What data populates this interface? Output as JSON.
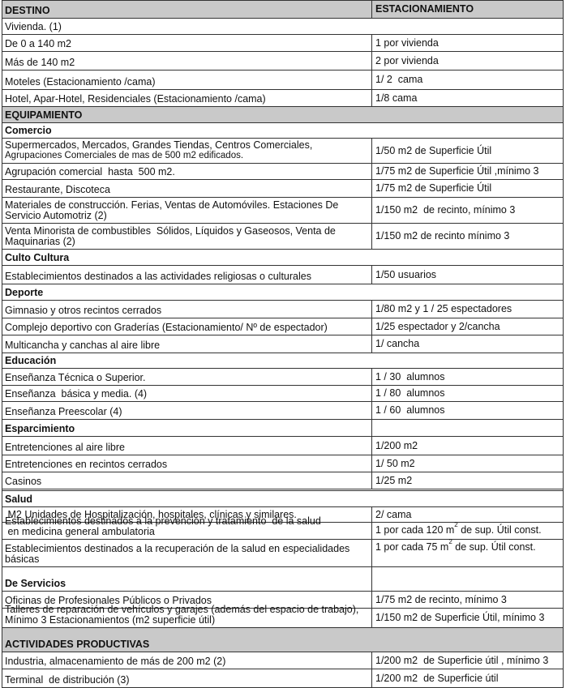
{
  "header": {
    "destino": "DESTINO",
    "estacionamiento": "ESTACIONAMIENTO"
  },
  "rows": [
    {
      "type": "sub-plain",
      "destino": "Vivienda. (1)"
    },
    {
      "type": "item",
      "destino": "De 0 a 140 m2",
      "estacionamiento": "1 por vivienda"
    },
    {
      "type": "item",
      "destino": "Más de 140 m2",
      "estacionamiento": "2 por vivienda"
    },
    {
      "type": "item",
      "destino": "Moteles (Estacionamiento /cama)",
      "estacionamiento": "1/ 2  cama"
    },
    {
      "type": "item",
      "destino": "Hotel, Apar-Hotel, Residenciales (Estacionamiento /cama)",
      "estacionamiento": "1/8 cama"
    },
    {
      "type": "section",
      "destino": "EQUIPAMIENTO"
    },
    {
      "type": "sub",
      "destino": "Comercio"
    },
    {
      "type": "item",
      "destino": "Supermercados, Mercados, Grandes Tiendas, Centros Comerciales,",
      "destino2": "Agrupaciones Comerciales de mas de 500 m2 edificados.",
      "estacionamiento": "1/50 m2 de Superficie Útil"
    },
    {
      "type": "item",
      "destino": "Agrupación comercial  hasta  500 m2.",
      "estacionamiento": "1/75 m2 de Superficie Útil ,mínimo 3"
    },
    {
      "type": "item",
      "destino": "Restaurante, Discoteca",
      "estacionamiento": "1/75 m2 de Superficie Útil"
    },
    {
      "type": "item",
      "destino": "Materiales de construcción. Ferias, Ventas de Automóviles. Estaciones De Servicio Automotriz (2)",
      "estacionamiento": "1/150 m2  de recinto, mínimo 3"
    },
    {
      "type": "item",
      "destino": "Venta Minorista de combustibles  Sólidos, Líquidos y Gaseosos, Venta de Maquinarias (2)",
      "estacionamiento": "1/150 m2 de recinto mínimo 3"
    },
    {
      "type": "sub",
      "destino": "Culto Cultura"
    },
    {
      "type": "item",
      "destino": "Establecimientos destinados a las actividades religiosas o culturales",
      "estacionamiento": "1/50 usuarios"
    },
    {
      "type": "sub",
      "destino": "Deporte"
    },
    {
      "type": "item",
      "destino": "Gimnasio y otros recintos cerrados",
      "estacionamiento": "1/80 m2 y 1 / 25 espectadores"
    },
    {
      "type": "item",
      "destino": "Complejo deportivo con Graderías (Estacionamiento/ Nº de espectador)",
      "estacionamiento": "1/25 espectador y 2/cancha"
    },
    {
      "type": "item",
      "destino": "Multicancha y canchas al aire libre",
      "estacionamiento": "1/ cancha"
    },
    {
      "type": "sub",
      "destino": "Educación"
    },
    {
      "type": "item",
      "destino": "Enseñanza Técnica o Superior.",
      "estacionamiento": "1 / 30  alumnos"
    },
    {
      "type": "item",
      "destino": "Enseñanza  básica y media. (4)",
      "estacionamiento": "1 / 80  alumnos"
    },
    {
      "type": "item",
      "destino": "Enseñanza Preescolar (4)",
      "estacionamiento": "1 / 60  alumnos"
    },
    {
      "type": "sub-split",
      "destino": "Esparcimiento",
      "estacionamiento": ""
    },
    {
      "type": "item",
      "destino": "Entretenciones al aire libre",
      "estacionamiento": "1/200 m2"
    },
    {
      "type": "item",
      "destino": "Entretenciones en recintos cerrados",
      "estacionamiento": "1/ 50 m2"
    },
    {
      "type": "item",
      "destino": "Casinos",
      "estacionamiento": "1/25 m2"
    },
    {
      "type": "sub",
      "destino": "Salud"
    },
    {
      "type": "item",
      "destino": " M2 Unidades de Hospitalización, hospitales, clínicas y similares.",
      "estacionamiento": "2/ cama"
    },
    {
      "type": "item",
      "destino": "Establecimientos destinados a la prevención y tratamiento  de la salud",
      "destino2": " en medicina general ambulatoria",
      "estacionamiento": "1 por cada 120 m",
      "sup": "2",
      "estacionamiento_tail": " de sup. Útil const."
    },
    {
      "type": "item",
      "destino": "Establecimientos destinados a la recuperación de la salud en especialidades básicas",
      "estacionamiento": "1 por cada 75 m",
      "sup": "2",
      "estacionamiento_tail": " de sup. Útil const."
    },
    {
      "type": "sub-split",
      "destino": "De Servicios",
      "estacionamiento": ""
    },
    {
      "type": "item",
      "destino": "Oficinas de Profesionales Públicos o Privados",
      "estacionamiento": "1/75 m2 de recinto, mínimo 3"
    },
    {
      "type": "item",
      "destino": "Talleres de reparación de vehículos y garajes (además del espacio de trabajo), Mínimo 3 Estacionamientos (m2 superficie útil)",
      "estacionamiento": "1/150 m2 de Superficie Útil, mínimo 3"
    },
    {
      "type": "section",
      "destino": "ACTIVIDADES PRODUCTIVAS"
    },
    {
      "type": "item",
      "destino": "Industria, almacenamiento de más de 200 m2 (2)",
      "estacionamiento": "1/200 m2  de Superficie útil , mínimo 3"
    },
    {
      "type": "item",
      "destino": "Terminal  de distribución (3)",
      "estacionamiento": "1/200 m2  de Superficie útil"
    }
  ]
}
